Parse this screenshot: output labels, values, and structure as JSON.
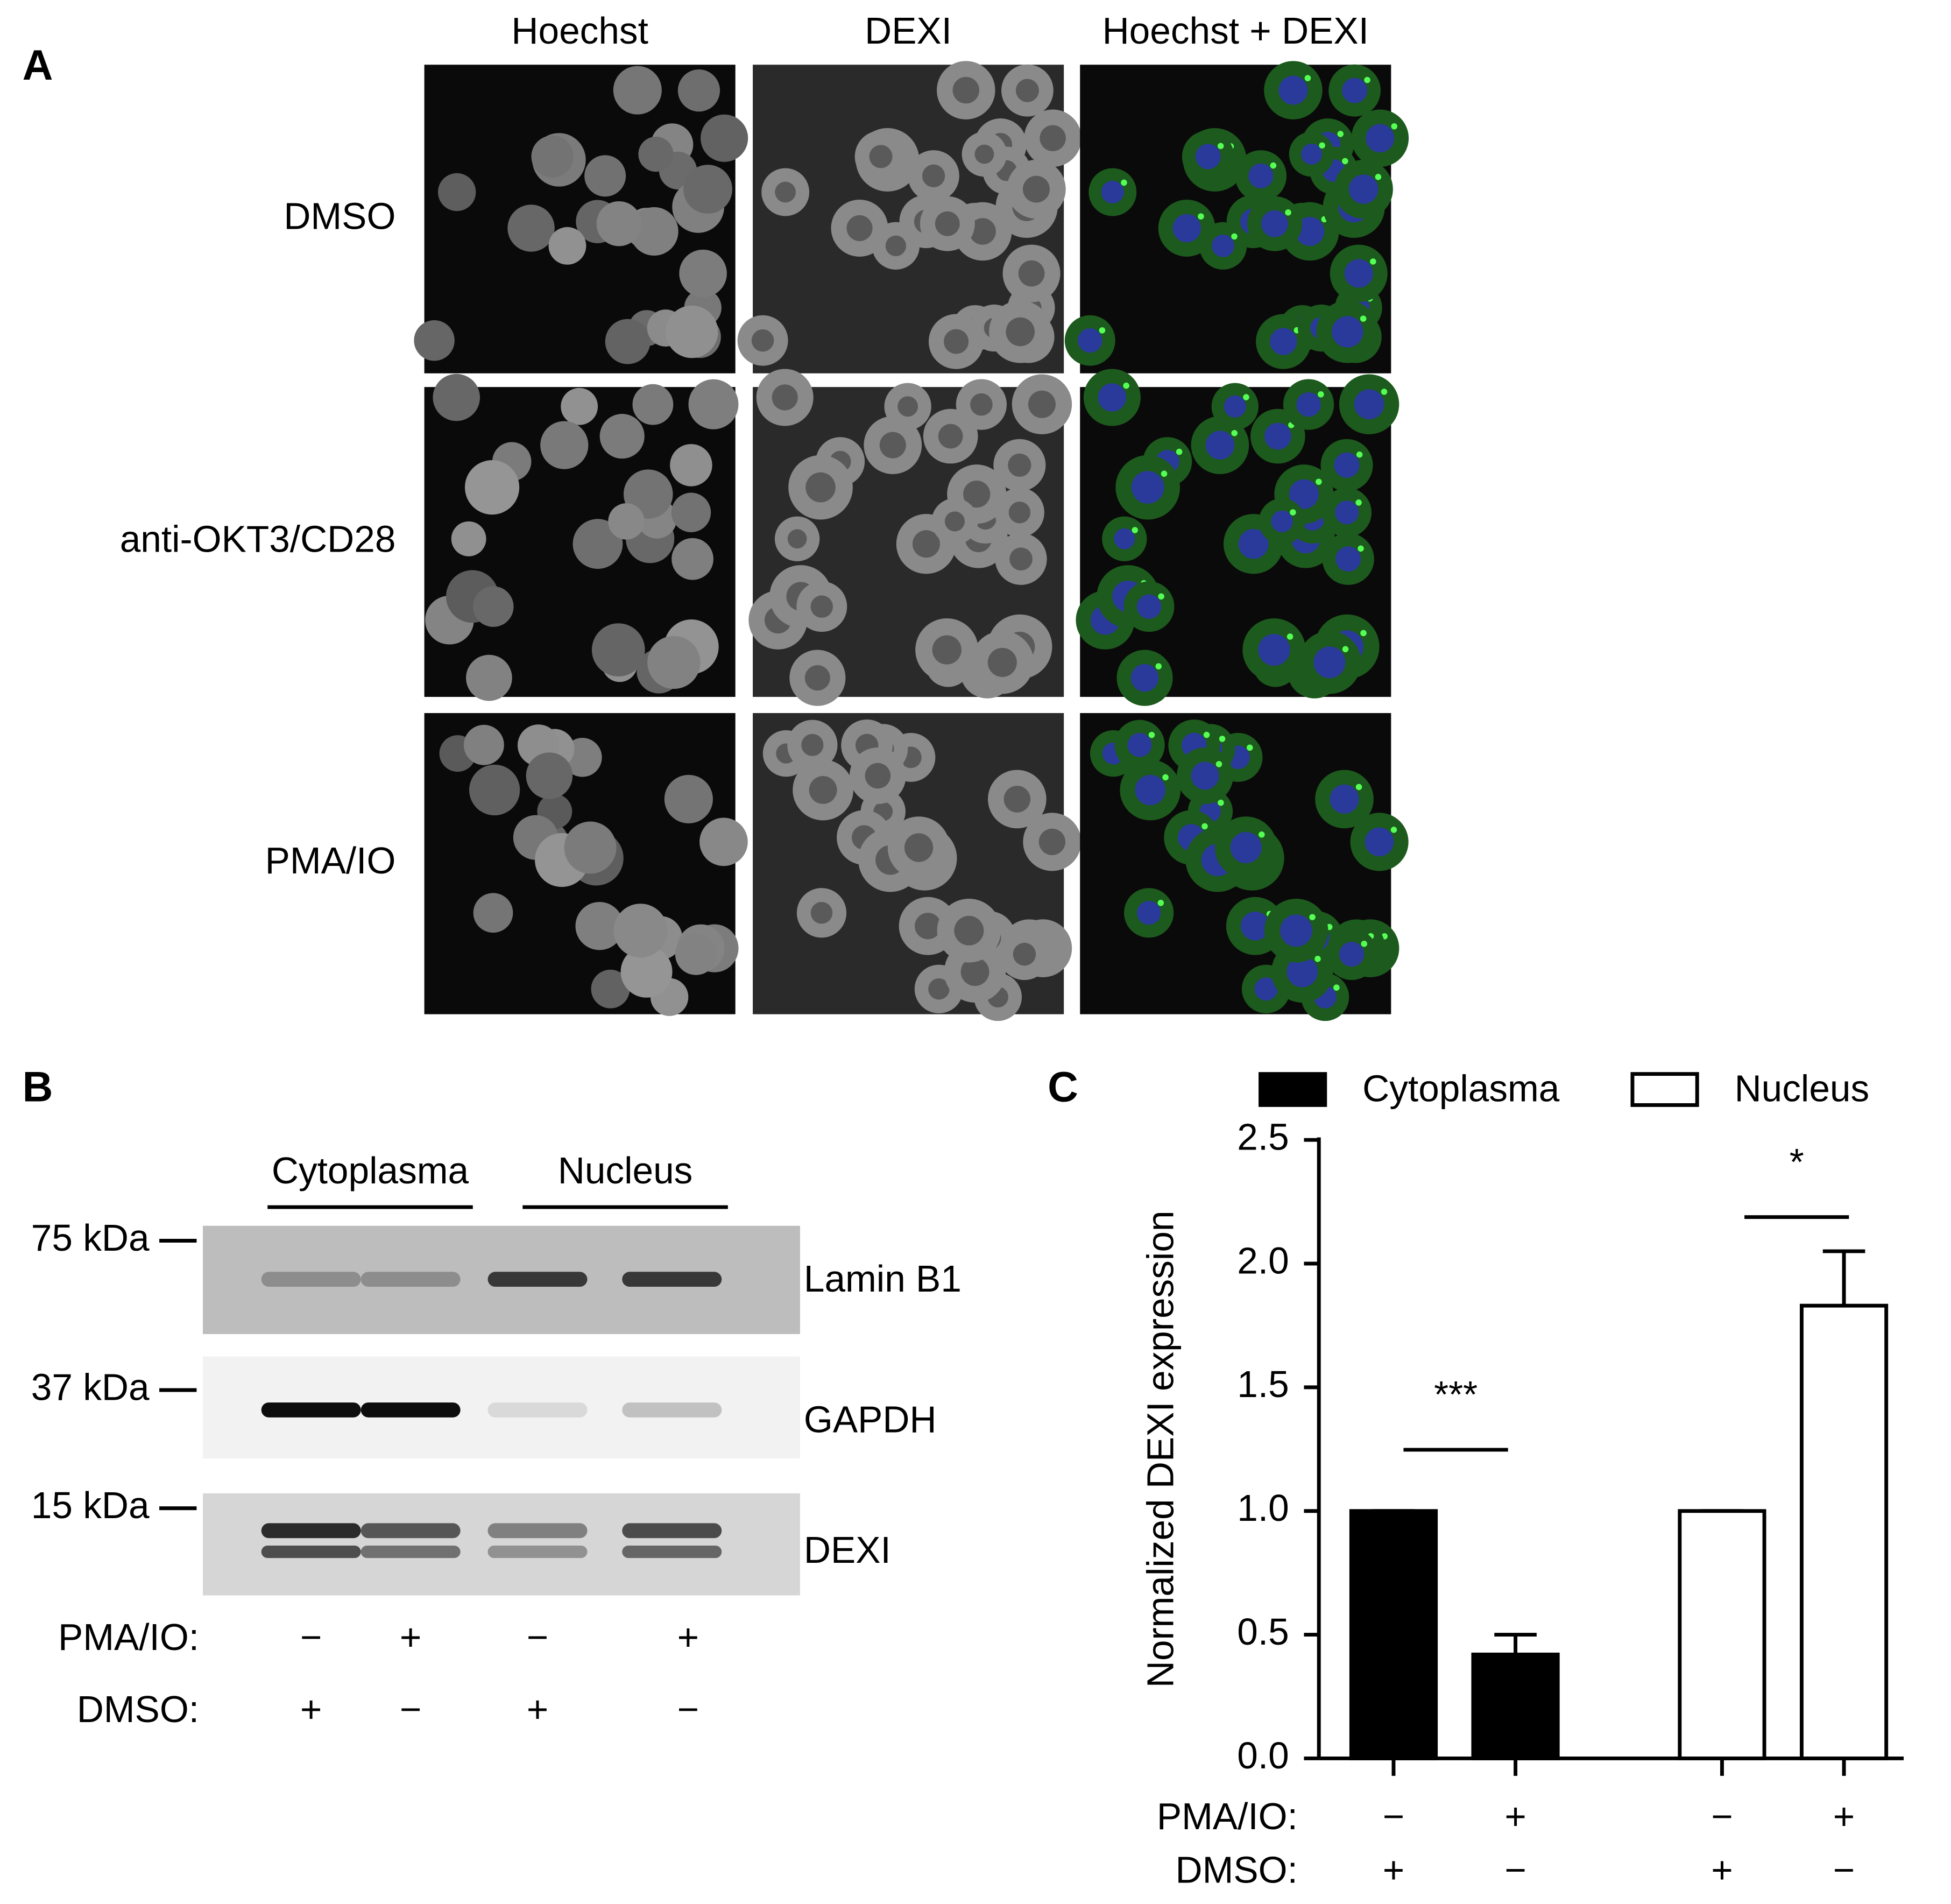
{
  "panel_a": {
    "label": "A",
    "columns": [
      "Hoechst",
      "DEXI",
      "Hoechst + DEXI"
    ],
    "rows": [
      "DMSO",
      "anti-OKT3/CD28",
      "PMA/IO"
    ]
  },
  "panel_b": {
    "label": "B",
    "fractions": [
      "Cytoplasma",
      "Nucleus"
    ],
    "markers": [
      "75 kDa",
      "37 kDa",
      "15 kDa"
    ],
    "proteins": [
      "Lamin B1",
      "GAPDH",
      "DEXI"
    ],
    "conditions": [
      {
        "label": "PMA/IO:",
        "signs": [
          "−",
          "+",
          "−",
          "+"
        ]
      },
      {
        "label": "DMSO:",
        "signs": [
          "+",
          "−",
          "+",
          "−"
        ]
      }
    ]
  },
  "chart_data": {
    "type": "bar",
    "label": "C",
    "ylabel": "Normalized DEXI expression",
    "series": [
      {
        "name": "Cytoplasma",
        "color": "#000000",
        "values": [
          1.0,
          0.42
        ],
        "errors": [
          0,
          0.08
        ]
      },
      {
        "name": "Nucleus",
        "color": "#ffffff",
        "values": [
          1.0,
          1.83
        ],
        "errors": [
          0,
          0.22
        ]
      }
    ],
    "ylim": [
      0,
      2.5
    ],
    "yticks": [
      {
        "value": 0,
        "label": "0.0"
      },
      0.5,
      {
        "value": 1,
        "label": "1.0"
      },
      1.5,
      {
        "value": 2,
        "label": "2.0"
      },
      2.5
    ],
    "annotations": [
      "***",
      "*"
    ],
    "conditions": [
      {
        "label": "PMA/IO:",
        "signs": [
          "−",
          "+",
          "−",
          "+"
        ]
      },
      {
        "label": "DMSO:",
        "signs": [
          "+",
          "−",
          "+",
          "−"
        ]
      }
    ]
  }
}
